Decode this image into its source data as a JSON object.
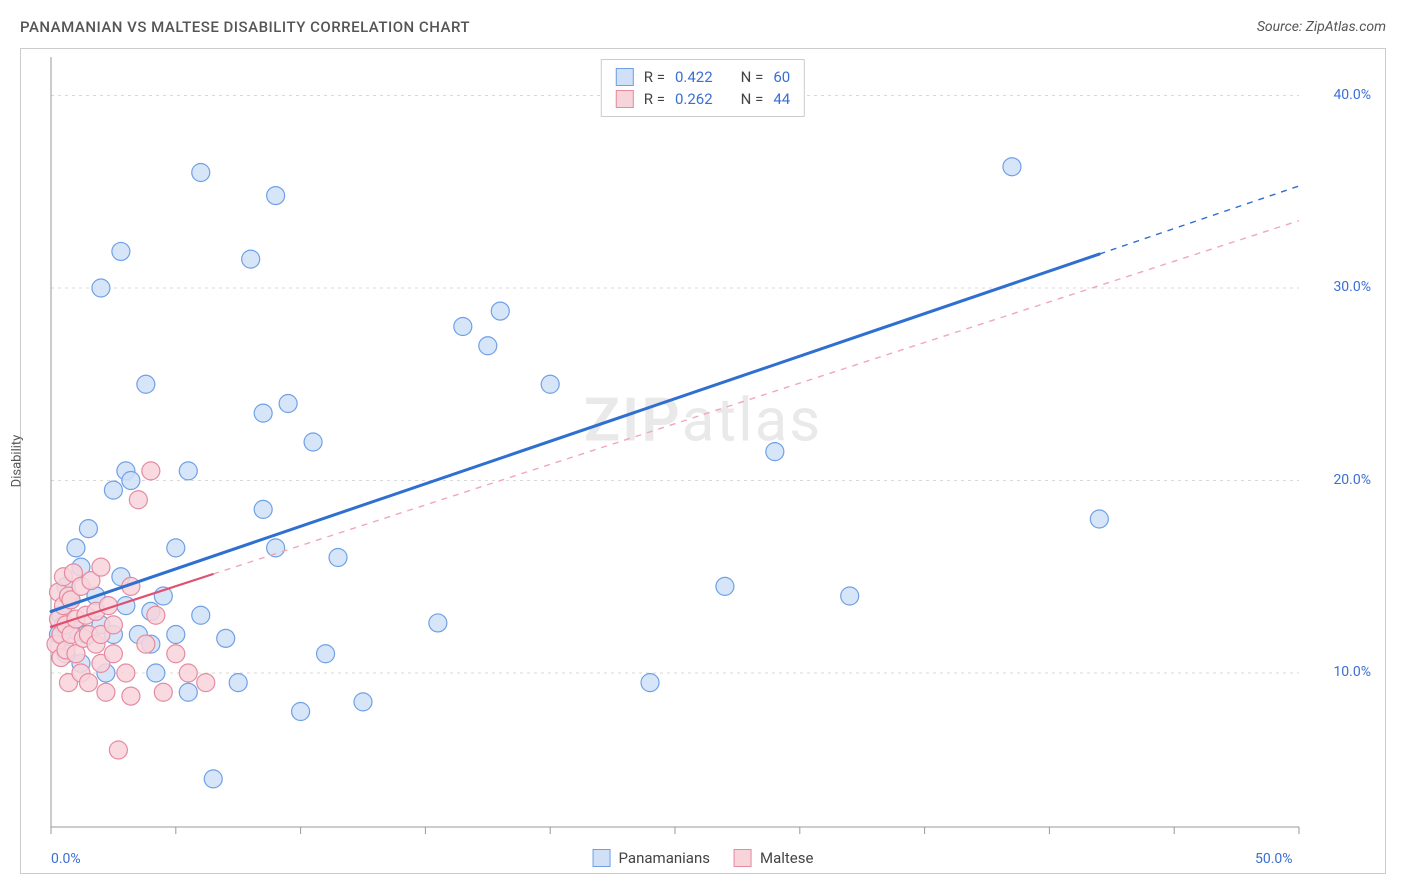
{
  "header": {
    "title": "PANAMANIAN VS MALTESE DISABILITY CORRELATION CHART",
    "source": "Source: ZipAtlas.com"
  },
  "chart": {
    "type": "scatter",
    "y_axis_label": "Disability",
    "watermark": "ZIPatlas",
    "background_color": "#ffffff",
    "grid_color": "#d8d8d8",
    "border_color": "#cccccc",
    "axis_label_color": "#3b6fd6",
    "axis_label_fontsize": 14,
    "xlim": [
      0,
      50
    ],
    "ylim": [
      2,
      42
    ],
    "x_ticks": [
      {
        "value": 0,
        "label": "0.0%"
      },
      {
        "value": 5,
        "label": ""
      },
      {
        "value": 10,
        "label": ""
      },
      {
        "value": 15,
        "label": ""
      },
      {
        "value": 20,
        "label": ""
      },
      {
        "value": 25,
        "label": ""
      },
      {
        "value": 30,
        "label": ""
      },
      {
        "value": 35,
        "label": ""
      },
      {
        "value": 40,
        "label": ""
      },
      {
        "value": 45,
        "label": ""
      },
      {
        "value": 50,
        "label": "50.0%"
      }
    ],
    "y_ticks": [
      {
        "value": 10,
        "label": "10.0%"
      },
      {
        "value": 20,
        "label": "20.0%"
      },
      {
        "value": 30,
        "label": "30.0%"
      },
      {
        "value": 40,
        "label": "40.0%"
      }
    ],
    "series": [
      {
        "name": "Panamanians",
        "marker_fill": "#cfe0f7",
        "marker_stroke": "#6fa0e6",
        "marker_radius": 9,
        "marker_opacity": 0.85,
        "trend_color": "#2f6fd0",
        "trend_width": 3,
        "trend_dash": "none",
        "trend_extrapolate_color": "#2f6fd0",
        "trend": {
          "x1": 0,
          "y1": 13.2,
          "x2": 50,
          "y2": 35.3
        },
        "data_extent_x": 42,
        "points": [
          [
            0.3,
            12.0
          ],
          [
            0.4,
            13.0
          ],
          [
            0.5,
            12.5
          ],
          [
            0.6,
            11.0
          ],
          [
            0.8,
            13.8
          ],
          [
            1.0,
            12.2
          ],
          [
            1.0,
            16.5
          ],
          [
            1.2,
            10.5
          ],
          [
            1.4,
            12.0
          ],
          [
            1.5,
            17.5
          ],
          [
            1.8,
            14.0
          ],
          [
            2.0,
            30.0
          ],
          [
            2.0,
            12.5
          ],
          [
            2.2,
            10.0
          ],
          [
            2.5,
            19.5
          ],
          [
            2.5,
            12.0
          ],
          [
            2.8,
            15.0
          ],
          [
            2.8,
            31.9
          ],
          [
            3.0,
            20.5
          ],
          [
            3.0,
            13.5
          ],
          [
            3.2,
            20.0
          ],
          [
            3.5,
            12.0
          ],
          [
            3.8,
            25.0
          ],
          [
            4.0,
            13.2
          ],
          [
            4.0,
            11.5
          ],
          [
            4.2,
            10.0
          ],
          [
            4.5,
            14.0
          ],
          [
            5.0,
            16.5
          ],
          [
            5.0,
            12.0
          ],
          [
            5.5,
            9.0
          ],
          [
            5.5,
            20.5
          ],
          [
            6.0,
            36.0
          ],
          [
            6.0,
            13.0
          ],
          [
            6.5,
            4.5
          ],
          [
            7.0,
            11.8
          ],
          [
            7.5,
            9.5
          ],
          [
            8.0,
            31.5
          ],
          [
            8.5,
            18.5
          ],
          [
            8.5,
            23.5
          ],
          [
            9.0,
            34.8
          ],
          [
            9.0,
            16.5
          ],
          [
            9.5,
            24.0
          ],
          [
            10.0,
            8.0
          ],
          [
            10.5,
            22.0
          ],
          [
            11.0,
            11.0
          ],
          [
            11.5,
            16.0
          ],
          [
            12.5,
            8.5
          ],
          [
            15.5,
            12.6
          ],
          [
            16.5,
            28.0
          ],
          [
            17.5,
            27.0
          ],
          [
            18.0,
            28.8
          ],
          [
            20.0,
            25.0
          ],
          [
            24.0,
            9.5
          ],
          [
            27.0,
            14.5
          ],
          [
            29.0,
            21.5
          ],
          [
            32.0,
            14.0
          ],
          [
            38.5,
            36.3
          ],
          [
            42.0,
            18.0
          ],
          [
            0.6,
            14.5
          ],
          [
            1.2,
            15.5
          ]
        ]
      },
      {
        "name": "Maltese",
        "marker_fill": "#f7d3da",
        "marker_stroke": "#e68aa0",
        "marker_radius": 9,
        "marker_opacity": 0.85,
        "trend_color": "#e05070",
        "trend_width": 2.2,
        "trend_dash": "none",
        "trend_extrapolate_color": "#f0a8b8",
        "trend_extrapolate_dash": "6,6",
        "trend": {
          "x1": 0,
          "y1": 12.4,
          "x2": 50,
          "y2": 33.5
        },
        "data_extent_x": 6.5,
        "points": [
          [
            0.2,
            11.5
          ],
          [
            0.3,
            12.8
          ],
          [
            0.3,
            14.2
          ],
          [
            0.4,
            10.8
          ],
          [
            0.4,
            12.0
          ],
          [
            0.5,
            13.5
          ],
          [
            0.5,
            15.0
          ],
          [
            0.6,
            11.2
          ],
          [
            0.6,
            12.5
          ],
          [
            0.7,
            14.0
          ],
          [
            0.7,
            9.5
          ],
          [
            0.8,
            12.0
          ],
          [
            0.8,
            13.8
          ],
          [
            0.9,
            15.2
          ],
          [
            1.0,
            11.0
          ],
          [
            1.0,
            12.8
          ],
          [
            1.2,
            10.0
          ],
          [
            1.2,
            14.5
          ],
          [
            1.3,
            11.8
          ],
          [
            1.4,
            13.0
          ],
          [
            1.5,
            9.5
          ],
          [
            1.5,
            12.0
          ],
          [
            1.6,
            14.8
          ],
          [
            1.8,
            11.5
          ],
          [
            1.8,
            13.2
          ],
          [
            2.0,
            10.5
          ],
          [
            2.0,
            12.0
          ],
          [
            2.0,
            15.5
          ],
          [
            2.2,
            9.0
          ],
          [
            2.3,
            13.5
          ],
          [
            2.5,
            11.0
          ],
          [
            2.5,
            12.5
          ],
          [
            2.7,
            6.0
          ],
          [
            3.0,
            10.0
          ],
          [
            3.2,
            8.8
          ],
          [
            3.2,
            14.5
          ],
          [
            3.5,
            19.0
          ],
          [
            3.8,
            11.5
          ],
          [
            4.0,
            20.5
          ],
          [
            4.2,
            13.0
          ],
          [
            4.5,
            9.0
          ],
          [
            5.0,
            11.0
          ],
          [
            5.5,
            10.0
          ],
          [
            6.2,
            9.5
          ]
        ]
      }
    ],
    "stats": [
      {
        "swatch": "panamanians",
        "R": "0.422",
        "N": "60"
      },
      {
        "swatch": "maltese",
        "R": "0.262",
        "N": "44"
      }
    ],
    "bottom_legend": [
      {
        "swatch": "panamanians",
        "label": "Panamanians"
      },
      {
        "swatch": "maltese",
        "label": "Maltese"
      }
    ],
    "swatch_colors": {
      "panamanians": {
        "fill": "#cfe0f7",
        "stroke": "#6fa0e6"
      },
      "maltese": {
        "fill": "#f7d3da",
        "stroke": "#e68aa0"
      }
    }
  }
}
